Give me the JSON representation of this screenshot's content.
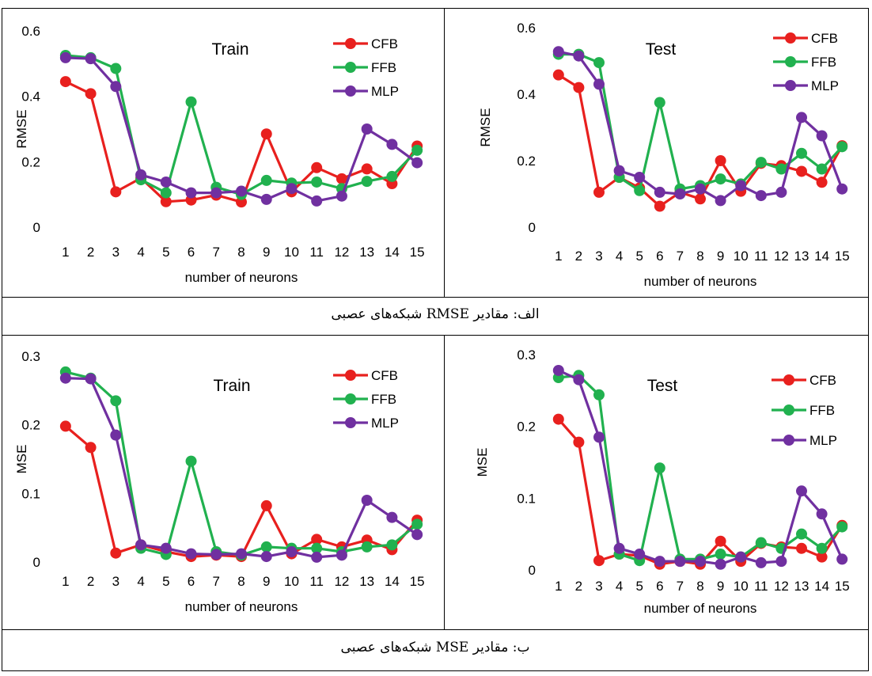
{
  "colors": {
    "CFB": "#e8201e",
    "FFB": "#21b14f",
    "MLP": "#7030a0"
  },
  "captions": {
    "rmse": "الف: مقادیر RMSE شبکه‌های عصبی",
    "mse": "ب: مقادیر MSE شبکه‌های عصبی"
  },
  "chart_data": [
    {
      "type": "line",
      "title": "Train",
      "xlabel": "number of neurons",
      "ylabel": "RMSE",
      "x": [
        1,
        2,
        3,
        4,
        5,
        6,
        7,
        8,
        9,
        10,
        11,
        12,
        13,
        14,
        15
      ],
      "yticks": [
        "0",
        "0.2",
        "0.4",
        "0.6"
      ],
      "ylim": [
        0,
        0.6
      ],
      "legend": "top-right",
      "series": [
        {
          "name": "CFB",
          "values": [
            0.445,
            0.408,
            0.108,
            0.15,
            0.078,
            0.083,
            0.098,
            0.077,
            0.285,
            0.108,
            0.182,
            0.148,
            0.178,
            0.133,
            0.248
          ]
        },
        {
          "name": "FFB",
          "values": [
            0.525,
            0.518,
            0.485,
            0.145,
            0.105,
            0.383,
            0.122,
            0.1,
            0.143,
            0.135,
            0.138,
            0.118,
            0.14,
            0.155,
            0.235
          ]
        },
        {
          "name": "MLP",
          "values": [
            0.518,
            0.515,
            0.43,
            0.16,
            0.138,
            0.105,
            0.105,
            0.11,
            0.085,
            0.118,
            0.08,
            0.095,
            0.3,
            0.253,
            0.197
          ]
        }
      ]
    },
    {
      "type": "line",
      "title": "Test",
      "xlabel": "number of neurons",
      "ylabel": "RMSE",
      "x": [
        1,
        2,
        3,
        4,
        5,
        6,
        7,
        8,
        9,
        10,
        11,
        12,
        13,
        14,
        15
      ],
      "yticks": [
        "0",
        "0.2",
        "0.4",
        "0.6"
      ],
      "ylim": [
        0,
        0.6
      ],
      "legend": "top-right",
      "series": [
        {
          "name": "CFB",
          "values": [
            0.458,
            0.42,
            0.105,
            0.15,
            0.118,
            0.063,
            0.105,
            0.085,
            0.2,
            0.108,
            0.192,
            0.185,
            0.168,
            0.135,
            0.245
          ]
        },
        {
          "name": "FFB",
          "values": [
            0.52,
            0.52,
            0.495,
            0.15,
            0.11,
            0.375,
            0.115,
            0.125,
            0.145,
            0.13,
            0.195,
            0.175,
            0.222,
            0.175,
            0.242
          ]
        },
        {
          "name": "MLP",
          "values": [
            0.528,
            0.515,
            0.43,
            0.17,
            0.15,
            0.105,
            0.1,
            0.115,
            0.08,
            0.125,
            0.095,
            0.105,
            0.33,
            0.275,
            0.115
          ]
        }
      ]
    },
    {
      "type": "line",
      "title": "Train",
      "xlabel": "number of neurons",
      "ylabel": "MSE",
      "x": [
        1,
        2,
        3,
        4,
        5,
        6,
        7,
        8,
        9,
        10,
        11,
        12,
        13,
        14,
        15
      ],
      "yticks": [
        "0",
        "0.1",
        "0.2",
        "0.3"
      ],
      "ylim": [
        0,
        0.3
      ],
      "legend": "top-right",
      "series": [
        {
          "name": "CFB",
          "values": [
            0.198,
            0.167,
            0.013,
            0.025,
            0.015,
            0.008,
            0.01,
            0.008,
            0.082,
            0.012,
            0.033,
            0.022,
            0.032,
            0.018,
            0.061
          ]
        },
        {
          "name": "FFB",
          "values": [
            0.277,
            0.268,
            0.235,
            0.02,
            0.011,
            0.147,
            0.015,
            0.01,
            0.022,
            0.02,
            0.02,
            0.015,
            0.022,
            0.025,
            0.055
          ]
        },
        {
          "name": "MLP",
          "values": [
            0.268,
            0.267,
            0.185,
            0.025,
            0.02,
            0.012,
            0.011,
            0.012,
            0.008,
            0.015,
            0.007,
            0.01,
            0.09,
            0.065,
            0.04
          ]
        }
      ]
    },
    {
      "type": "line",
      "title": "Test",
      "xlabel": "number of neurons",
      "ylabel": "MSE",
      "x": [
        1,
        2,
        3,
        4,
        5,
        6,
        7,
        8,
        9,
        10,
        11,
        12,
        13,
        14,
        15
      ],
      "yticks": [
        "0",
        "0.1",
        "0.2",
        "0.3"
      ],
      "ylim": [
        0,
        0.3
      ],
      "legend": "top-right",
      "series": [
        {
          "name": "CFB",
          "values": [
            0.21,
            0.178,
            0.013,
            0.022,
            0.02,
            0.008,
            0.012,
            0.008,
            0.04,
            0.012,
            0.037,
            0.032,
            0.03,
            0.018,
            0.062
          ]
        },
        {
          "name": "FFB",
          "values": [
            0.268,
            0.271,
            0.244,
            0.022,
            0.013,
            0.142,
            0.015,
            0.015,
            0.022,
            0.018,
            0.038,
            0.03,
            0.05,
            0.03,
            0.06
          ]
        },
        {
          "name": "MLP",
          "values": [
            0.278,
            0.265,
            0.185,
            0.03,
            0.022,
            0.012,
            0.012,
            0.012,
            0.008,
            0.018,
            0.01,
            0.012,
            0.11,
            0.078,
            0.015
          ]
        }
      ]
    }
  ]
}
